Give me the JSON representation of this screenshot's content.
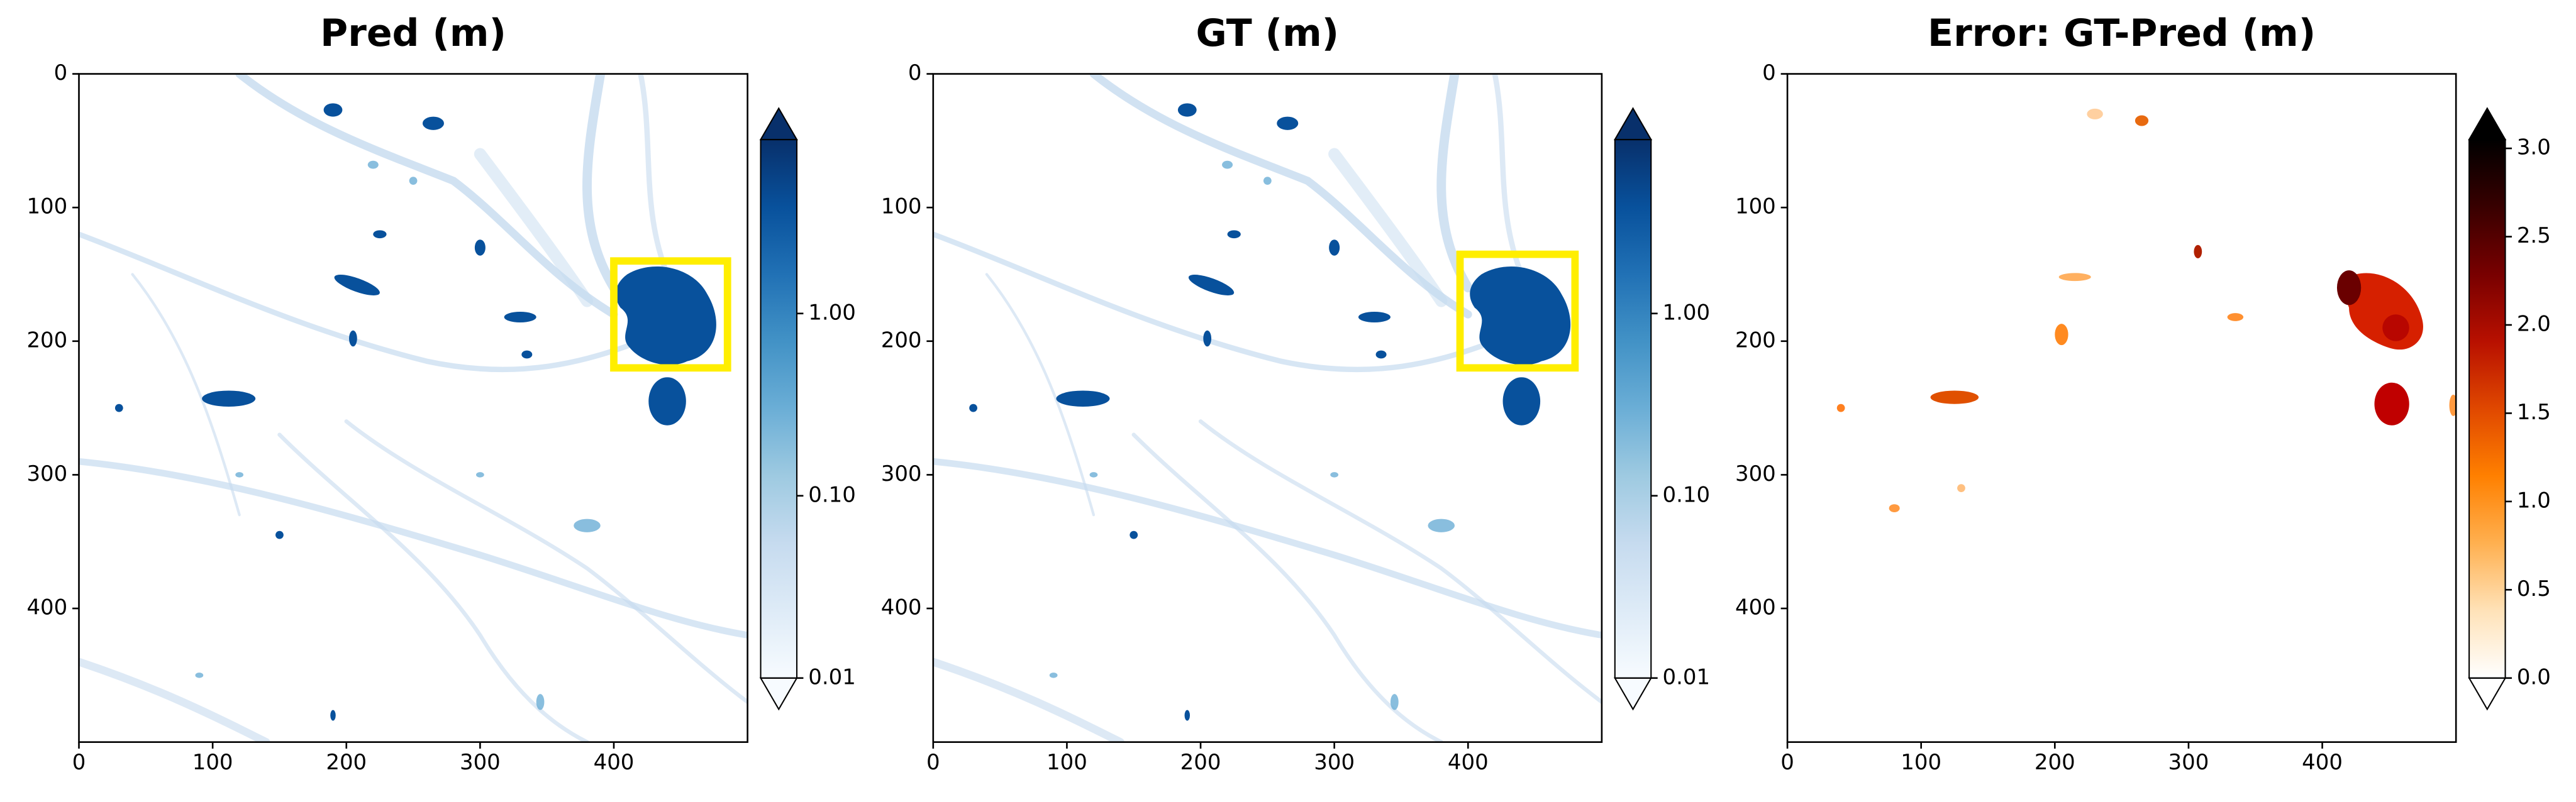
{
  "chart_data": [
    {
      "type": "heatmap",
      "title": "Pred (m)",
      "xlim": [
        0,
        500
      ],
      "ylim": [
        500,
        0
      ],
      "xticks": [
        0,
        100,
        200,
        300,
        400
      ],
      "yticks": [
        0,
        100,
        200,
        300,
        400
      ],
      "cmap": "Blues",
      "colorbar_log": true,
      "clim": [
        0.01,
        9
      ],
      "extend": "both",
      "cticks": [
        0.01,
        {
          "value": 0.1,
          "label": "0.10"
        },
        {
          "value": 1,
          "label": "1.00"
        }
      ],
      "box": {
        "x": [
          400,
          485
        ],
        "y": [
          140,
          220
        ],
        "color": "#ffee00"
      }
    },
    {
      "type": "heatmap",
      "title": "GT (m)",
      "xlim": [
        0,
        500
      ],
      "ylim": [
        500,
        0
      ],
      "xticks": [
        0,
        100,
        200,
        300,
        400
      ],
      "yticks": [
        0,
        100,
        200,
        300,
        400
      ],
      "cmap": "Blues",
      "colorbar_log": true,
      "clim": [
        0.01,
        9
      ],
      "extend": "both",
      "cticks": [
        0.01,
        {
          "value": 0.1,
          "label": "0.10"
        },
        {
          "value": 1,
          "label": "1.00"
        }
      ],
      "box": {
        "x": [
          394,
          480
        ],
        "y": [
          135,
          220
        ],
        "color": "#ffee00"
      }
    },
    {
      "type": "heatmap",
      "title": "Error: GT-Pred (m)",
      "xlim": [
        0,
        500
      ],
      "ylim": [
        500,
        0
      ],
      "xticks": [
        0,
        100,
        200,
        300,
        400
      ],
      "yticks": [
        0,
        100,
        200,
        300,
        400
      ],
      "cmap": "gist_heat_r",
      "colorbar_log": false,
      "clim": [
        0,
        3.05
      ],
      "extend": "both",
      "cticks": [
        {
          "value": 0,
          "label": "0.0"
        },
        0.5,
        {
          "value": 1,
          "label": "1.0"
        },
        1.5,
        {
          "value": 2,
          "label": "2.0"
        },
        2.5,
        {
          "value": 3,
          "label": "3.0"
        }
      ]
    }
  ]
}
